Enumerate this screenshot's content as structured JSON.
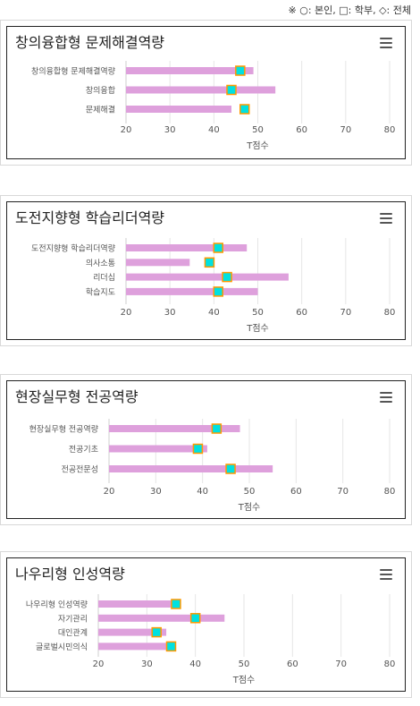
{
  "legend_note": "※ ○: 본인, □: 학부, ◇: 전체",
  "colors": {
    "bar": "#dea0dc",
    "marker_fill": "#00e1e1",
    "marker_stroke": "#ff9900",
    "grid": "#e6e6e6",
    "axis_text": "#555555"
  },
  "chart_data": [
    {
      "type": "bar",
      "orientation": "horizontal",
      "title": "창의융합형 문제해결역량",
      "categories": [
        "창의융합형 문제해결역량",
        "창의융합",
        "문제해결"
      ],
      "values": [
        49,
        54,
        44
      ],
      "marker_values": [
        46,
        44,
        47
      ],
      "xlim": [
        20,
        80
      ],
      "xticks": [
        20,
        30,
        40,
        50,
        60,
        70,
        80
      ],
      "xlabel": "T점수",
      "grid": true
    },
    {
      "type": "bar",
      "orientation": "horizontal",
      "title": "도전지향형 학습리더역량",
      "categories": [
        "도전지향형 학습리더역량",
        "의사소통",
        "리더십",
        "학습지도"
      ],
      "values": [
        47.5,
        34.5,
        57,
        50
      ],
      "marker_values": [
        41,
        39,
        43,
        41
      ],
      "xlim": [
        20,
        80
      ],
      "xticks": [
        20,
        30,
        40,
        50,
        60,
        70,
        80
      ],
      "xlabel": "T점수",
      "grid": true
    },
    {
      "type": "bar",
      "orientation": "horizontal",
      "title": "현장실무형 전공역량",
      "categories": [
        "현장실무형 전공역량",
        "전공기초",
        "전공전문성"
      ],
      "values": [
        48,
        41,
        55
      ],
      "marker_values": [
        43,
        39,
        46
      ],
      "xlim": [
        20,
        80
      ],
      "xticks": [
        20,
        30,
        40,
        50,
        60,
        70,
        80
      ],
      "xlabel": "T점수",
      "grid": true
    },
    {
      "type": "bar",
      "orientation": "horizontal",
      "title": "나우리형 인성역량",
      "categories": [
        "나우리형 인성역량",
        "자기관리",
        "대인관계",
        "글로벌시민의식"
      ],
      "values": [
        37,
        46,
        34,
        35
      ],
      "marker_values": [
        36,
        40,
        32,
        35
      ],
      "xlim": [
        20,
        80
      ],
      "xticks": [
        20,
        30,
        40,
        50,
        60,
        70,
        80
      ],
      "xlabel": "T점수",
      "grid": true
    }
  ]
}
